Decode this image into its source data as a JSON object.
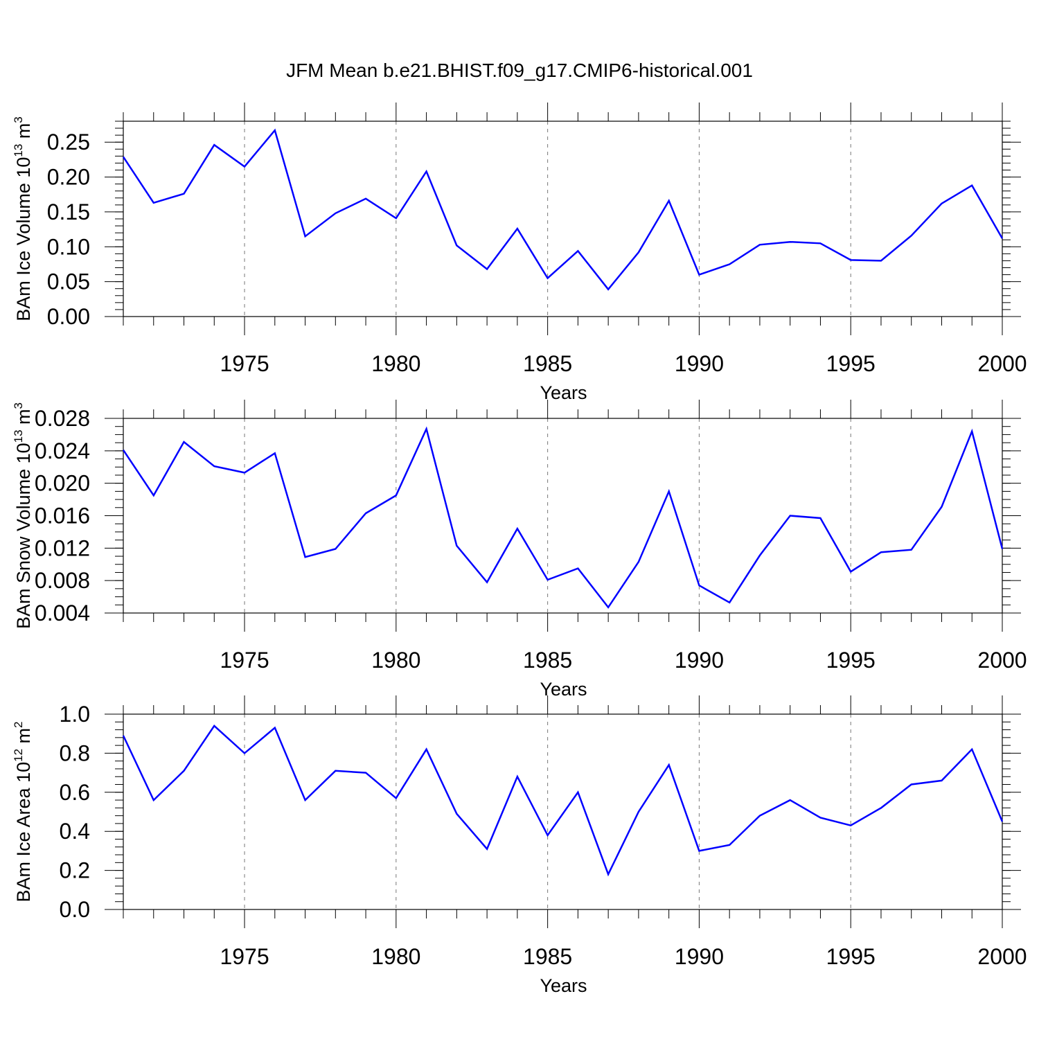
{
  "title": "JFM Mean b.e21.BHIST.f09_g17.CMIP6-historical.001",
  "colors": {
    "line": "#0000ff",
    "axis": "#000000",
    "grid": "#777777"
  },
  "chart_data": [
    {
      "type": "line",
      "xlabel": "Years",
      "ylabel_main": "BAm Ice Volume 10",
      "ylabel_exp": "13",
      "ylabel_tail": " m",
      "ylabel_unit_exp": "3",
      "xlim": [
        1971,
        2000
      ],
      "ylim": [
        0.0,
        0.28
      ],
      "x_ticks": [
        1975,
        1980,
        1985,
        1990,
        1995,
        2000
      ],
      "y_ticks": [
        0.0,
        0.05,
        0.1,
        0.15,
        0.2,
        0.25
      ],
      "y_tick_labels": [
        "0.00",
        "0.05",
        "0.10",
        "0.15",
        "0.20",
        "0.25"
      ],
      "y_minor_step": 0.01,
      "series": [
        {
          "name": "BAm Ice Volume",
          "x": [
            1971,
            1972,
            1973,
            1974,
            1975,
            1976,
            1977,
            1978,
            1979,
            1980,
            1981,
            1982,
            1983,
            1984,
            1985,
            1986,
            1987,
            1988,
            1989,
            1990,
            1991,
            1992,
            1993,
            1994,
            1995,
            1996,
            1997,
            1998,
            1999,
            2000
          ],
          "values": [
            0.229,
            0.163,
            0.176,
            0.246,
            0.215,
            0.267,
            0.115,
            0.148,
            0.169,
            0.141,
            0.208,
            0.102,
            0.068,
            0.126,
            0.055,
            0.094,
            0.039,
            0.092,
            0.166,
            0.06,
            0.075,
            0.103,
            0.107,
            0.105,
            0.081,
            0.08,
            0.116,
            0.162,
            0.188,
            0.112
          ]
        }
      ]
    },
    {
      "type": "line",
      "xlabel": "Years",
      "ylabel_main": "BAm Snow Volume 10",
      "ylabel_exp": "13",
      "ylabel_tail": " m",
      "ylabel_unit_exp": "3",
      "xlim": [
        1971,
        2000
      ],
      "ylim": [
        0.004,
        0.028
      ],
      "x_ticks": [
        1975,
        1980,
        1985,
        1990,
        1995,
        2000
      ],
      "y_ticks": [
        0.004,
        0.008,
        0.012,
        0.016,
        0.02,
        0.024,
        0.028
      ],
      "y_tick_labels": [
        "0.004",
        "0.008",
        "0.012",
        "0.016",
        "0.020",
        "0.024",
        "0.028"
      ],
      "y_minor_step": 0.001,
      "series": [
        {
          "name": "BAm Snow Volume",
          "x": [
            1971,
            1972,
            1973,
            1974,
            1975,
            1976,
            1977,
            1978,
            1979,
            1980,
            1981,
            1982,
            1983,
            1984,
            1985,
            1986,
            1987,
            1988,
            1989,
            1990,
            1991,
            1992,
            1993,
            1994,
            1995,
            1996,
            1997,
            1998,
            1999,
            2000
          ],
          "values": [
            0.0241,
            0.0185,
            0.0251,
            0.0221,
            0.0213,
            0.0237,
            0.0109,
            0.0119,
            0.0163,
            0.0185,
            0.0267,
            0.0123,
            0.0078,
            0.0144,
            0.0081,
            0.0095,
            0.0047,
            0.0103,
            0.019,
            0.0074,
            0.0053,
            0.0111,
            0.016,
            0.0157,
            0.0091,
            0.0115,
            0.0118,
            0.0171,
            0.0264,
            0.0119
          ]
        }
      ]
    },
    {
      "type": "line",
      "xlabel": "Years",
      "ylabel_main": "BAm Ice Area 10",
      "ylabel_exp": "12",
      "ylabel_tail": " m",
      "ylabel_unit_exp": "2",
      "xlim": [
        1971,
        2000
      ],
      "ylim": [
        0.0,
        1.0
      ],
      "x_ticks": [
        1975,
        1980,
        1985,
        1990,
        1995,
        2000
      ],
      "y_ticks": [
        0.0,
        0.2,
        0.4,
        0.6,
        0.8,
        1.0
      ],
      "y_tick_labels": [
        "0.0",
        "0.2",
        "0.4",
        "0.6",
        "0.8",
        "1.0"
      ],
      "y_minor_step": 0.04,
      "series": [
        {
          "name": "BAm Ice Area",
          "x": [
            1971,
            1972,
            1973,
            1974,
            1975,
            1976,
            1977,
            1978,
            1979,
            1980,
            1981,
            1982,
            1983,
            1984,
            1985,
            1986,
            1987,
            1988,
            1989,
            1990,
            1991,
            1992,
            1993,
            1994,
            1995,
            1996,
            1997,
            1998,
            1999,
            2000
          ],
          "values": [
            0.89,
            0.56,
            0.71,
            0.94,
            0.8,
            0.93,
            0.56,
            0.71,
            0.7,
            0.57,
            0.82,
            0.49,
            0.31,
            0.68,
            0.38,
            0.6,
            0.18,
            0.5,
            0.74,
            0.3,
            0.33,
            0.48,
            0.56,
            0.47,
            0.43,
            0.52,
            0.64,
            0.66,
            0.82,
            0.45
          ]
        }
      ]
    }
  ]
}
